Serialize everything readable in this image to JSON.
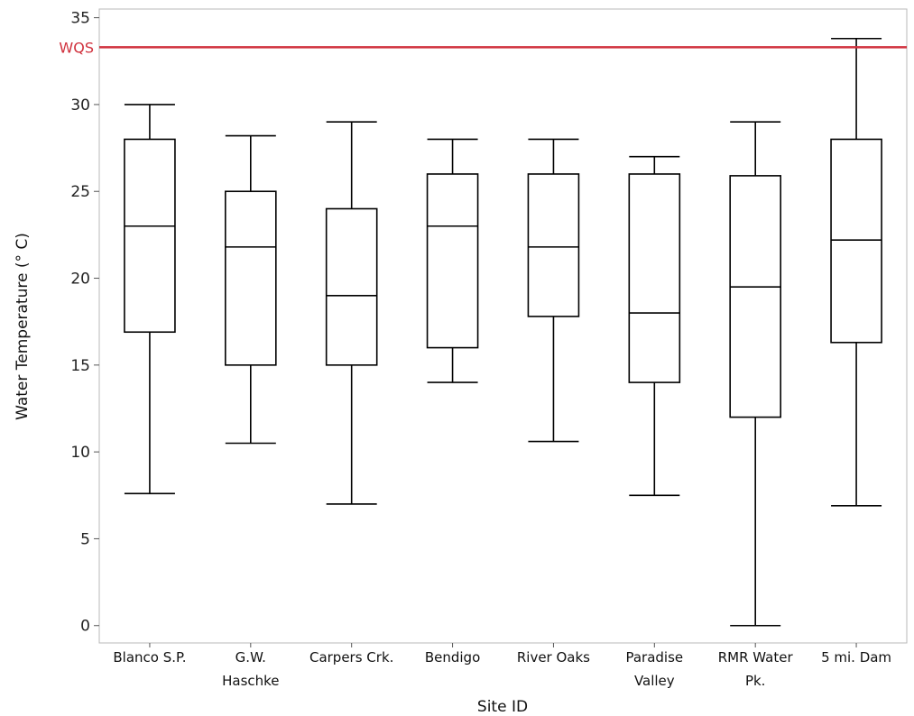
{
  "chart_data": {
    "type": "box",
    "xlabel": "Site ID",
    "ylabel": "Water Temperature (° C)",
    "ylim": [
      -1,
      35.5
    ],
    "yticks": [
      0,
      5,
      10,
      15,
      20,
      25,
      30,
      35
    ],
    "reference_line": {
      "label": "WQS",
      "value": 33.3,
      "color": "#d0313d"
    },
    "categories": [
      [
        "Blanco S.P."
      ],
      [
        "G.W.",
        "Haschke"
      ],
      [
        "Carpers Crk."
      ],
      [
        "Bendigo"
      ],
      [
        "River Oaks"
      ],
      [
        "Paradise",
        "Valley"
      ],
      [
        "RMR Water",
        "Pk."
      ],
      [
        "5 mi. Dam"
      ]
    ],
    "boxes": [
      {
        "min": 7.6,
        "q1": 16.9,
        "median": 23.0,
        "q3": 28.0,
        "max": 30.0
      },
      {
        "min": 10.5,
        "q1": 15.0,
        "median": 21.8,
        "q3": 25.0,
        "max": 28.2
      },
      {
        "min": 7.0,
        "q1": 15.0,
        "median": 19.0,
        "q3": 24.0,
        "max": 29.0
      },
      {
        "min": 14.0,
        "q1": 16.0,
        "median": 23.0,
        "q3": 26.0,
        "max": 28.0
      },
      {
        "min": 10.6,
        "q1": 17.8,
        "median": 21.8,
        "q3": 26.0,
        "max": 28.0
      },
      {
        "min": 7.5,
        "q1": 14.0,
        "median": 18.0,
        "q3": 26.0,
        "max": 27.0
      },
      {
        "min": 0.0,
        "q1": 12.0,
        "median": 19.5,
        "q3": 25.9,
        "max": 29.0
      },
      {
        "min": 6.9,
        "q1": 16.3,
        "median": 22.2,
        "q3": 28.0,
        "max": 33.8
      }
    ]
  }
}
